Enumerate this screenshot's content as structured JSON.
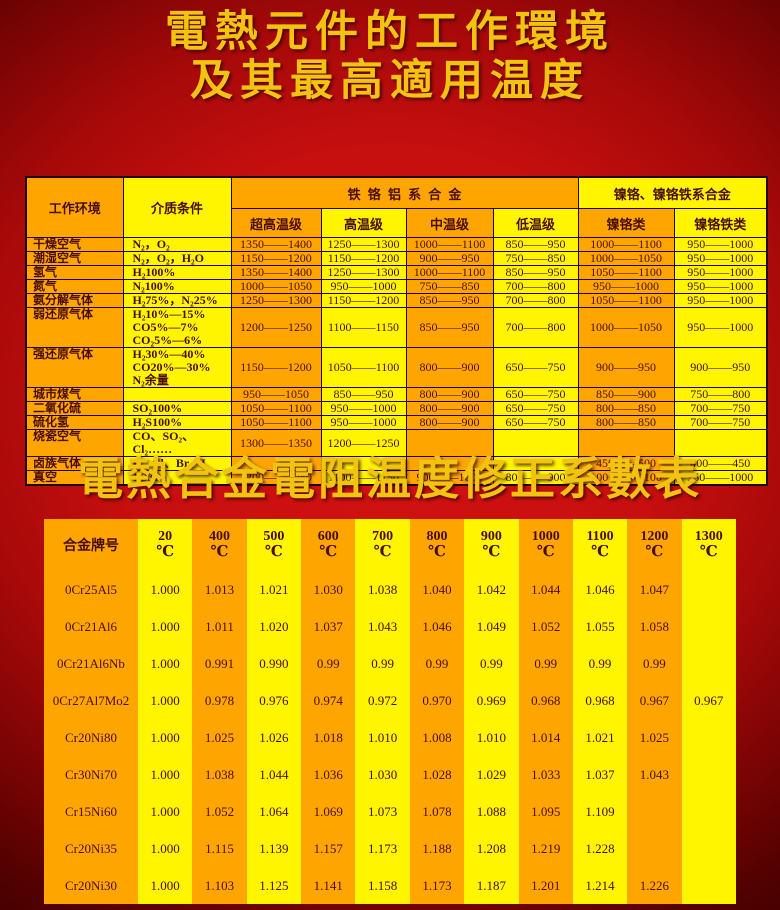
{
  "titles": {
    "line1": "電熱元件的工作環境",
    "line2": "及其最高適用温度",
    "table2_title": "電熱合金電阻温度修正系數表"
  },
  "colors": {
    "background_red": "#c70f0f",
    "column_orange": "#ffa500",
    "column_yellow": "#fff500",
    "title_gold": "#f2c30f",
    "table_text": "#4a0e00"
  },
  "table1": {
    "header": {
      "env": "工作环境",
      "medium": "介质条件",
      "group_fecral": "铁铬铝系合金",
      "group_nicr": "镍铬、镍铬铁系合金",
      "sub": [
        "超高温级",
        "高温级",
        "中温级",
        "低温级",
        "镍铬类",
        "镍铬铁类"
      ]
    },
    "rows": [
      {
        "env": "干燥空气",
        "medium": "N₂，O₂",
        "values": [
          "1350——1400",
          "1250——1300",
          "1000——1100",
          "850——950",
          "1000——1100",
          "950——1000"
        ]
      },
      {
        "env": "潮湿空气",
        "medium": "N₂，O₂，H₂O",
        "values": [
          "1150——1200",
          "1150——1200",
          "900——950",
          "750——850",
          "1000——1050",
          "950——1000"
        ]
      },
      {
        "env": "氢气",
        "medium": "H₂100%",
        "values": [
          "1350——1400",
          "1250——1300",
          "1000——1100",
          "850——950",
          "1050——1100",
          "950——1000"
        ]
      },
      {
        "env": "氮气",
        "medium": "N₂100%",
        "values": [
          "1000——1050",
          "950——1000",
          "750——850",
          "700——800",
          "950——1000",
          "950——1000"
        ]
      },
      {
        "env": "氨分解气体",
        "medium": "H₂75%，N₂25%",
        "values": [
          "1250——1300",
          "1150——1200",
          "850——950",
          "700——800",
          "1050——1100",
          "950——1000"
        ]
      },
      {
        "env": "弱还原气体",
        "medium": "H₂10%—15%\nCO5%—7%\nCO₂5%—6%",
        "values": [
          "1200——1250",
          "1100——1150",
          "850——950",
          "700——800",
          "1000——1050",
          "950——1000"
        ]
      },
      {
        "env": "强还原气体",
        "medium": "H₂30%—40%\nCO20%—30%\nN₂余量",
        "values": [
          "1150——1200",
          "1050——1100",
          "800——900",
          "650——750",
          "900——950",
          "900——950"
        ]
      },
      {
        "env": "城市煤气",
        "medium": "",
        "values": [
          "950——1050",
          "850——950",
          "800——900",
          "650——750",
          "850——900",
          "750——800"
        ]
      },
      {
        "env": "二氧化硫",
        "medium": "SO₂100%",
        "values": [
          "1050——1100",
          "950——1000",
          "800——900",
          "650——750",
          "800——850",
          "700——750"
        ]
      },
      {
        "env": "硫化氢",
        "medium": "H₂S100%",
        "values": [
          "1050——1100",
          "950——1000",
          "800——900",
          "650——750",
          "800——850",
          "700——750"
        ]
      },
      {
        "env": "烧瓷空气",
        "medium": "CO、SO₂、Cl₂……",
        "values": [
          "1300——1350",
          "1200——1250",
          "",
          "",
          "",
          ""
        ]
      },
      {
        "env": "卤族气体",
        "medium": "F、Cl、Br、I",
        "values": [
          "",
          "",
          "",
          "",
          "450——500",
          "400——450"
        ]
      },
      {
        "env": "真空",
        "medium": "1.33Pa",
        "values": [
          "1200——1250",
          "1100——1150",
          "900——1000",
          "800——900",
          "1000——1100",
          "950——1000"
        ]
      }
    ]
  },
  "table2": {
    "corner": "合金牌号",
    "unit": "℃",
    "temps": [
      "20",
      "400",
      "500",
      "600",
      "700",
      "800",
      "900",
      "1000",
      "1100",
      "1200",
      "1300"
    ],
    "rows": [
      {
        "name": "0Cr25Al5",
        "values": [
          "1.000",
          "1.013",
          "1.021",
          "1.030",
          "1.038",
          "1.040",
          "1.042",
          "1.044",
          "1.046",
          "1.047",
          ""
        ]
      },
      {
        "name": "0Cr21Al6",
        "values": [
          "1.000",
          "1.011",
          "1.020",
          "1.037",
          "1.043",
          "1.046",
          "1.049",
          "1.052",
          "1.055",
          "1.058",
          ""
        ]
      },
      {
        "name": "0Cr21Al6Nb",
        "values": [
          "1.000",
          "0.991",
          "0.990",
          "0.99",
          "0.99",
          "0.99",
          "0.99",
          "0.99",
          "0.99",
          "0.99",
          ""
        ]
      },
      {
        "name": "0Cr27Al7Mo2",
        "values": [
          "1.000",
          "0.978",
          "0.976",
          "0.974",
          "0.972",
          "0.970",
          "0.969",
          "0.968",
          "0.968",
          "0.967",
          "0.967"
        ]
      },
      {
        "name": "Cr20Ni80",
        "values": [
          "1.000",
          "1.025",
          "1.026",
          "1.018",
          "1.010",
          "1.008",
          "1.010",
          "1.014",
          "1.021",
          "1.025",
          ""
        ]
      },
      {
        "name": "Cr30Ni70",
        "values": [
          "1.000",
          "1.038",
          "1.044",
          "1.036",
          "1.030",
          "1.028",
          "1.029",
          "1.033",
          "1.037",
          "1.043",
          ""
        ]
      },
      {
        "name": "Cr15Ni60",
        "values": [
          "1.000",
          "1.052",
          "1.064",
          "1.069",
          "1.073",
          "1.078",
          "1.088",
          "1.095",
          "1.109",
          "",
          ""
        ]
      },
      {
        "name": "Cr20Ni35",
        "values": [
          "1.000",
          "1.115",
          "1.139",
          "1.157",
          "1.173",
          "1.188",
          "1.208",
          "1.219",
          "1.228",
          "",
          ""
        ]
      },
      {
        "name": "Cr20Ni30",
        "values": [
          "1.000",
          "1.103",
          "1.125",
          "1.141",
          "1.158",
          "1.173",
          "1.187",
          "1.201",
          "1.214",
          "1.226",
          ""
        ]
      }
    ]
  }
}
